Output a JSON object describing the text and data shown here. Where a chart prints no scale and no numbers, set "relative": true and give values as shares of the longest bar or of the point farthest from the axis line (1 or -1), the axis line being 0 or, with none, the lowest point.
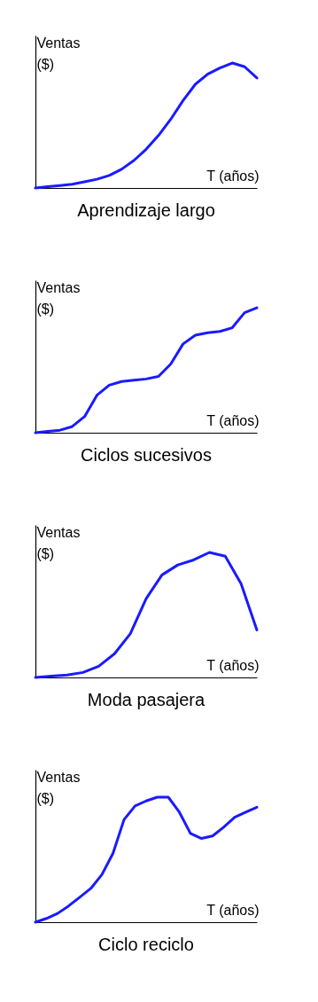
{
  "chart_data": [
    {
      "type": "line",
      "title": "Aprendizaje largo",
      "xlabel": "T (años)",
      "ylabel": "Ventas ($)",
      "relative": true,
      "categories": [
        null,
        null,
        null,
        null,
        null,
        null,
        null,
        null,
        null,
        null,
        null,
        null,
        null,
        null,
        null,
        null,
        null,
        null,
        null
      ],
      "series": [
        {
          "color": "#1a1aff",
          "values": [
            0,
            0.01,
            0.02,
            0.03,
            0.05,
            0.07,
            0.1,
            0.15,
            0.22,
            0.31,
            0.42,
            0.55,
            0.7,
            0.83,
            0.91,
            0.96,
            1,
            0.97,
            0.88
          ]
        }
      ]
    },
    {
      "type": "line",
      "title": "Ciclos sucesivos",
      "xlabel": "T (años)",
      "ylabel": "Ventas ($)",
      "relative": true,
      "categories": [
        null,
        null,
        null,
        null,
        null,
        null,
        null,
        null,
        null,
        null,
        null,
        null,
        null,
        null,
        null,
        null,
        null,
        null,
        null
      ],
      "series": [
        {
          "color": "#1a1aff",
          "values": [
            0,
            0.01,
            0.02,
            0.05,
            0.13,
            0.3,
            0.38,
            0.41,
            0.42,
            0.43,
            0.45,
            0.55,
            0.71,
            0.78,
            0.8,
            0.81,
            0.84,
            0.96,
            1
          ]
        }
      ]
    },
    {
      "type": "line",
      "title": "Moda pasajera",
      "xlabel": "T (años)",
      "ylabel": "Ventas ($)",
      "relative": true,
      "categories": [
        null,
        null,
        null,
        null,
        null,
        null,
        null,
        null,
        null,
        null,
        null,
        null,
        null,
        null,
        null
      ],
      "series": [
        {
          "color": "#1a1aff",
          "values": [
            0,
            0.01,
            0.02,
            0.04,
            0.09,
            0.19,
            0.35,
            0.63,
            0.82,
            0.9,
            0.94,
            1,
            0.97,
            0.75,
            0.38
          ]
        }
      ]
    },
    {
      "type": "line",
      "title": "Ciclo reciclo",
      "xlabel": "T (años)",
      "ylabel": "Ventas ($)",
      "relative": true,
      "categories": [
        null,
        null,
        null,
        null,
        null,
        null,
        null,
        null,
        null,
        null,
        null,
        null,
        null,
        null,
        null,
        null,
        null,
        null,
        null,
        null,
        null
      ],
      "series": [
        {
          "color": "#1a1aff",
          "values": [
            0,
            0.03,
            0.07,
            0.13,
            0.2,
            0.27,
            0.38,
            0.55,
            0.82,
            0.93,
            0.97,
            1,
            1,
            0.88,
            0.71,
            0.67,
            0.69,
            0.76,
            0.84,
            0.88,
            0.92
          ]
        }
      ]
    }
  ]
}
